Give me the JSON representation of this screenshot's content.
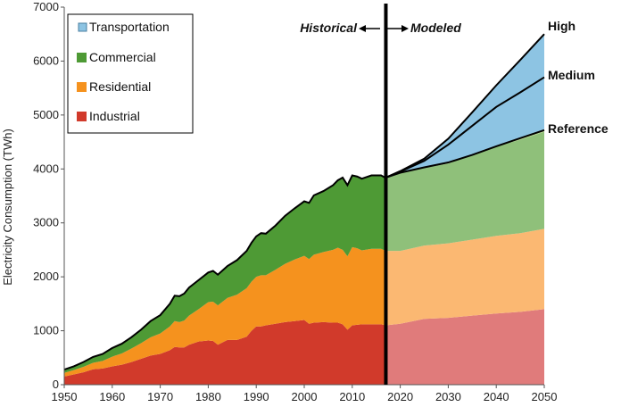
{
  "chart_data": {
    "type": "area",
    "title": "",
    "xlabel": "",
    "ylabel": "Electricity Consumption (TWh)",
    "xlim": [
      1950,
      2050
    ],
    "ylim": [
      0,
      7000
    ],
    "x_ticks": [
      1950,
      1960,
      1970,
      1980,
      1990,
      2000,
      2010,
      2020,
      2030,
      2040,
      2050
    ],
    "y_ticks": [
      0,
      1000,
      2000,
      3000,
      4000,
      5000,
      6000,
      7000
    ],
    "stacked": true,
    "legend_position": "top-left",
    "legend": [
      "Transportation",
      "Commercial",
      "Residential",
      "Industrial"
    ],
    "divider_year": 2017,
    "annotations": {
      "historical": "Historical",
      "modeled": "Modeled",
      "high": "High",
      "medium": "Medium",
      "reference": "Reference"
    },
    "colors": {
      "industrial": "#d13a2b",
      "residential": "#f5921e",
      "commercial": "#4e9a35",
      "transportation": "#8dc4e3",
      "industrial_modeled": "#e07b7b",
      "residential_modeled": "#fbb872",
      "commercial_modeled": "#8fc07a",
      "transportation_modeled": "#8dc4e3",
      "medium_band": "#f4a688",
      "reference_band": "#b8d98e"
    },
    "historical": {
      "x": [
        1950,
        1952,
        1954,
        1956,
        1958,
        1960,
        1962,
        1964,
        1966,
        1968,
        1970,
        1972,
        1973,
        1974,
        1975,
        1976,
        1978,
        1980,
        1981,
        1982,
        1984,
        1986,
        1988,
        1989,
        1990,
        1991,
        1992,
        1994,
        1996,
        1998,
        2000,
        2001,
        2002,
        2004,
        2006,
        2007,
        2008,
        2009,
        2010,
        2011,
        2012,
        2014,
        2016,
        2017
      ],
      "industrial": [
        150,
        190,
        230,
        285,
        300,
        340,
        370,
        420,
        480,
        540,
        570,
        640,
        700,
        690,
        690,
        740,
        800,
        820,
        810,
        740,
        830,
        830,
        890,
        1000,
        1080,
        1080,
        1100,
        1130,
        1160,
        1180,
        1200,
        1130,
        1150,
        1160,
        1150,
        1150,
        1120,
        1020,
        1100,
        1110,
        1120,
        1120,
        1120,
        1100
      ],
      "residential": [
        70,
        80,
        100,
        120,
        140,
        180,
        210,
        250,
        290,
        340,
        380,
        440,
        480,
        470,
        500,
        540,
        600,
        710,
        730,
        730,
        780,
        840,
        900,
        910,
        920,
        950,
        930,
        1000,
        1080,
        1140,
        1190,
        1200,
        1260,
        1300,
        1350,
        1390,
        1380,
        1360,
        1450,
        1420,
        1370,
        1400,
        1400,
        1380
      ],
      "commercial": [
        60,
        70,
        90,
        110,
        130,
        160,
        180,
        210,
        250,
        300,
        340,
        420,
        470,
        480,
        500,
        520,
        540,
        550,
        570,
        570,
        590,
        640,
        690,
        720,
        750,
        780,
        770,
        820,
        890,
        950,
        1010,
        1040,
        1100,
        1130,
        1200,
        1250,
        1340,
        1320,
        1330,
        1330,
        1330,
        1360,
        1360,
        1350
      ]
    },
    "modeled": {
      "x": [
        2017,
        2020,
        2025,
        2030,
        2035,
        2040,
        2045,
        2050
      ],
      "industrial": [
        1100,
        1130,
        1220,
        1240,
        1280,
        1320,
        1350,
        1400
      ],
      "residential": [
        1380,
        1350,
        1360,
        1380,
        1410,
        1440,
        1460,
        1490
      ],
      "commercial": [
        1350,
        1450,
        1440,
        1480,
        1580,
        1660,
        1730,
        1800
      ],
      "reference_total": [
        3840,
        3930,
        4030,
        4120,
        4260,
        4420,
        4570,
        4720
      ],
      "medium_total": [
        3840,
        3950,
        4150,
        4450,
        4800,
        5150,
        5420,
        5700
      ],
      "high_total": [
        3840,
        3960,
        4190,
        4560,
        5050,
        5550,
        6020,
        6500
      ]
    }
  }
}
